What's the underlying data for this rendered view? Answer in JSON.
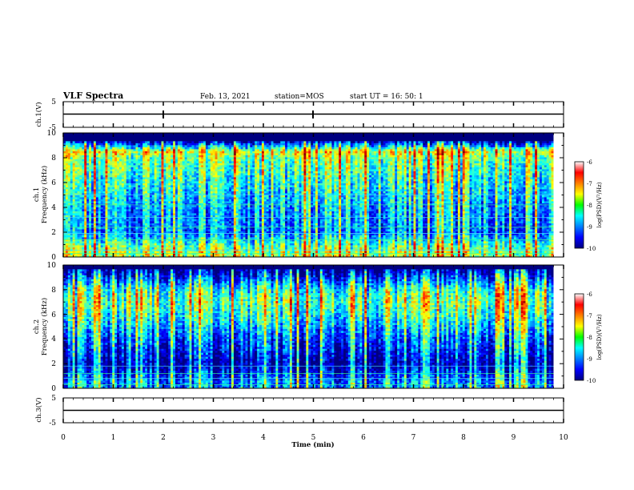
{
  "header": {
    "title": "VLF Spectra",
    "date": "Feb. 13, 2021",
    "station": "station=MOS",
    "start": "start UT = 16: 50: 1"
  },
  "axes": {
    "time_label": "Time (min)",
    "x_ticks": [
      "0",
      "1",
      "2",
      "3",
      "4",
      "5",
      "6",
      "7",
      "8",
      "9",
      "10"
    ],
    "ch1v_label": "ch.1(V)",
    "ch3v_label": "ch.3(V)",
    "v_ticks": [
      "5",
      "-5"
    ],
    "ch1_spec_label1": "ch.1",
    "ch1_spec_label2": "Frequency (kHz)",
    "ch2_spec_label1": "ch.2",
    "ch2_spec_label2": "Frequency (kHz)",
    "freq_ticks": [
      "0",
      "2",
      "4",
      "6",
      "8",
      "10"
    ],
    "colorbar_label": "log(PSD)(V²/Hz)",
    "colorbar_ticks": [
      "-6",
      "-7",
      "-8",
      "-9",
      "-10"
    ]
  },
  "chart_data": [
    {
      "type": "line",
      "title": "ch.1(V)",
      "xlabel": "Time (min)",
      "ylabel": "ch.1(V)",
      "xlim": [
        0,
        10
      ],
      "ylim": [
        -5,
        5
      ],
      "x": [
        0,
        10
      ],
      "y": [
        0,
        0
      ],
      "spike_times_min": [
        2.0,
        5.0
      ]
    },
    {
      "type": "heatmap",
      "title": "ch.1",
      "xlabel": "Time (min)",
      "ylabel": "Frequency (kHz)",
      "xlim": [
        0,
        9.8
      ],
      "ylim": [
        0,
        10
      ],
      "zlim": [
        -10,
        -6
      ],
      "zlabel": "log(PSD)(V²/Hz)",
      "colormap": "jet",
      "upper_cutoff_khz": 9.3,
      "band_centers_khz": [
        0.5,
        8.5
      ],
      "mean_log_psd_by_freq_khz": {
        "0.5": -7.6,
        "2": -8.8,
        "4": -8.6,
        "6": -8.2,
        "8": -7.8,
        "8.5": -7.3,
        "9.5": -10
      }
    },
    {
      "type": "heatmap",
      "title": "ch.2",
      "xlabel": "Time (min)",
      "ylabel": "Frequency (kHz)",
      "xlim": [
        0,
        9.8
      ],
      "ylim": [
        0,
        10
      ],
      "zlim": [
        -10,
        -6
      ],
      "zlabel": "log(PSD)(V²/Hz)",
      "colormap": "jet",
      "upper_cutoff_khz": 9.6,
      "band_centers_khz": [
        7.0
      ],
      "mean_log_psd_by_freq_khz": {
        "0.5": -8.8,
        "2": -9.6,
        "4": -9.0,
        "6": -8.2,
        "7": -7.9,
        "8": -8.2,
        "9.5": -9.6
      }
    },
    {
      "type": "line",
      "title": "ch.3(V)",
      "xlabel": "Time (min)",
      "ylabel": "ch.3(V)",
      "xlim": [
        0,
        10
      ],
      "ylim": [
        -5,
        5
      ],
      "x": [
        0,
        10
      ],
      "y": [
        0,
        0
      ]
    }
  ]
}
